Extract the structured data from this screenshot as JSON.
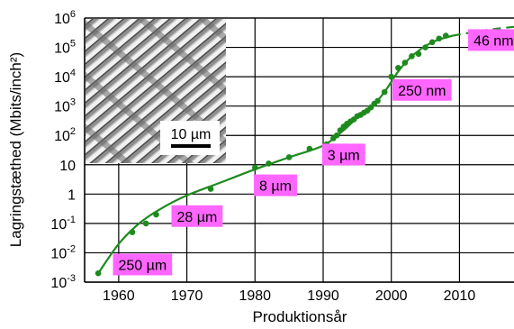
{
  "chart_data": {
    "type": "scatter",
    "title": "",
    "xlabel": "Produktionsår",
    "ylabel": "Lagringstæthed (Mbits/inch²)",
    "x_ticks": [
      "1960",
      "1970",
      "1980",
      "1990",
      "2000",
      "2010"
    ],
    "y_ticks": [
      {
        "base": "10",
        "exp": "-3"
      },
      {
        "base": "10",
        "exp": "-2"
      },
      {
        "base": "10",
        "exp": "-1"
      },
      {
        "base": "1",
        "exp": ""
      },
      {
        "base": "10",
        "exp": ""
      },
      {
        "base": "10",
        "exp": "2"
      },
      {
        "base": "10",
        "exp": "3"
      },
      {
        "base": "10",
        "exp": "4"
      },
      {
        "base": "10",
        "exp": "5"
      },
      {
        "base": "10",
        "exp": "6"
      }
    ],
    "xlim": [
      1955,
      2018
    ],
    "ylim_log10": [
      -3,
      6
    ],
    "y_scale": "log",
    "grid": true,
    "colors": {
      "series": "#1e8a1e",
      "label_box": "#ff66ff",
      "grid": "#000000"
    },
    "series": [
      {
        "points": [
          [
            1957,
            0.002
          ],
          [
            1962,
            0.05
          ],
          [
            1964,
            0.1
          ],
          [
            1965.5,
            0.2
          ],
          [
            1973.5,
            1.5
          ],
          [
            1980,
            8
          ],
          [
            1982,
            11
          ],
          [
            1985,
            18
          ],
          [
            1988,
            35
          ],
          [
            1990.5,
            50
          ],
          [
            1991.5,
            80
          ],
          [
            1992,
            100
          ],
          [
            1992.5,
            150
          ],
          [
            1993,
            200
          ],
          [
            1993.5,
            250
          ],
          [
            1994,
            300
          ],
          [
            1994.5,
            350
          ],
          [
            1995,
            450
          ],
          [
            1995.5,
            500
          ],
          [
            1996,
            600
          ],
          [
            1996.5,
            700
          ],
          [
            1997,
            900
          ],
          [
            1997.5,
            1200
          ],
          [
            1998,
            1500
          ],
          [
            1999,
            3000
          ],
          [
            2000,
            10000
          ],
          [
            2001,
            20000
          ],
          [
            2002,
            30000
          ],
          [
            2003,
            50000
          ],
          [
            2004,
            60000
          ],
          [
            2005,
            100000
          ],
          [
            2006,
            150000
          ],
          [
            2007,
            200000
          ],
          [
            2008,
            250000
          ]
        ],
        "trend_solid": [
          [
            1957,
            0.002
          ],
          [
            1960,
            0.02
          ],
          [
            1963,
            0.1
          ],
          [
            1966,
            0.3
          ],
          [
            1970,
            0.9
          ],
          [
            1975,
            2.5
          ],
          [
            1980,
            7
          ],
          [
            1985,
            18
          ],
          [
            1990,
            45
          ],
          [
            1993,
            150
          ],
          [
            1995,
            400
          ],
          [
            1997,
            900
          ],
          [
            1999,
            3000
          ],
          [
            2001,
            15000
          ],
          [
            2003,
            50000
          ],
          [
            2006,
            150000
          ],
          [
            2009,
            250000
          ]
        ],
        "trend_dashed": [
          [
            2009,
            250000
          ],
          [
            2012,
            330000
          ],
          [
            2015,
            420000
          ],
          [
            2018,
            500000
          ]
        ]
      }
    ],
    "annotations": [
      {
        "text": "250 µm",
        "x": 1963.5,
        "y_log10": -2.4
      },
      {
        "text": "28 µm",
        "x": 1971.5,
        "y_log10": -0.75
      },
      {
        "text": "8 µm",
        "x": 1983.0,
        "y_log10": 0.3
      },
      {
        "text": "3 µm",
        "x": 1993.0,
        "y_log10": 1.35
      },
      {
        "text": "250 nm",
        "x": 2004.5,
        "y_log10": 3.55
      },
      {
        "text": "46 nm",
        "x": 2015.0,
        "y_log10": 5.25
      }
    ],
    "inset": {
      "scale_bar_label": "10 µm"
    }
  }
}
